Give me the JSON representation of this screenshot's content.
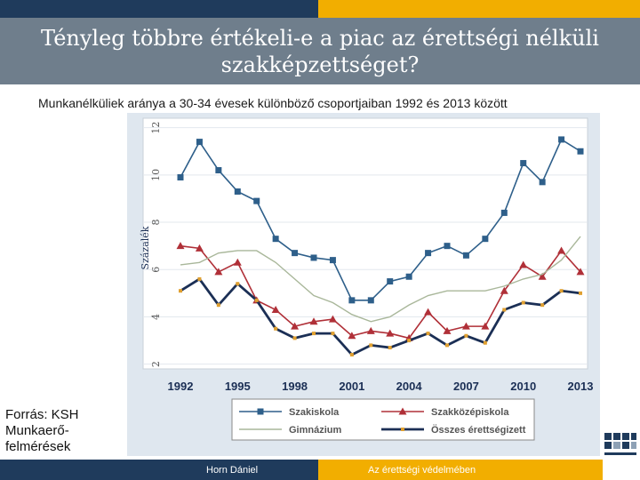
{
  "title": "Tényleg többre értékeli-e a piac az érettségi nélküli szakképzettséget?",
  "subtitle": "Munkanélküliek aránya a 30-34 évesek különböző csoportjaiban 1992 és 2013 között",
  "source": "Forrás: KSH Munkaerő-felmérések",
  "footer": {
    "author": "Horn Dániel",
    "motto": "Az érettségi védelmében"
  },
  "colors": {
    "navy": "#1f3b5c",
    "gold": "#f2ae00",
    "title_bg": "#6f7e8c"
  },
  "chart_data": {
    "type": "line",
    "title": "",
    "xlabel": "",
    "ylabel": "Százalék",
    "x": [
      1992,
      1993,
      1994,
      1995,
      1996,
      1997,
      1998,
      1999,
      2000,
      2001,
      2002,
      2003,
      2004,
      2005,
      2006,
      2007,
      2008,
      2009,
      2010,
      2011,
      2012,
      2013
    ],
    "xticks": [
      1992,
      1995,
      1998,
      2001,
      2004,
      2007,
      2010,
      2013
    ],
    "yticks": [
      2,
      4,
      6,
      8,
      10,
      12
    ],
    "ylim": [
      1.8,
      12.4
    ],
    "grid": true,
    "legend_position": "bottom",
    "series": [
      {
        "name": "Szakiskola",
        "color": "#2e5f8a",
        "marker": "square",
        "values": [
          9.9,
          11.4,
          10.2,
          9.3,
          8.9,
          7.3,
          6.7,
          6.5,
          6.4,
          4.7,
          4.7,
          5.5,
          5.7,
          6.7,
          7.0,
          6.6,
          7.3,
          8.4,
          10.5,
          9.7,
          11.5,
          11.0
        ]
      },
      {
        "name": "Szakközépiskola",
        "color": "#b03038",
        "marker": "triangle",
        "values": [
          7.0,
          6.9,
          5.9,
          6.3,
          4.7,
          4.3,
          3.6,
          3.8,
          3.9,
          3.2,
          3.4,
          3.3,
          3.1,
          4.2,
          3.4,
          3.6,
          3.6,
          5.1,
          6.2,
          5.7,
          6.8,
          5.9
        ]
      },
      {
        "name": "Gimnázium",
        "color": "#a9b79a",
        "marker": "none",
        "values": [
          6.2,
          6.3,
          6.7,
          6.8,
          6.8,
          6.3,
          5.6,
          4.9,
          4.6,
          4.1,
          3.8,
          4.0,
          4.5,
          4.9,
          5.1,
          5.1,
          5.1,
          5.3,
          5.6,
          5.8,
          6.4,
          7.4
        ]
      },
      {
        "name": "Összes érettségizett",
        "color": "#1b2f55",
        "marker": "small",
        "values": [
          5.1,
          5.6,
          4.5,
          5.4,
          4.7,
          3.5,
          3.1,
          3.3,
          3.3,
          2.4,
          2.8,
          2.7,
          3.0,
          3.3,
          2.8,
          3.2,
          2.9,
          4.3,
          4.6,
          4.5,
          5.1,
          5.0
        ]
      }
    ]
  }
}
